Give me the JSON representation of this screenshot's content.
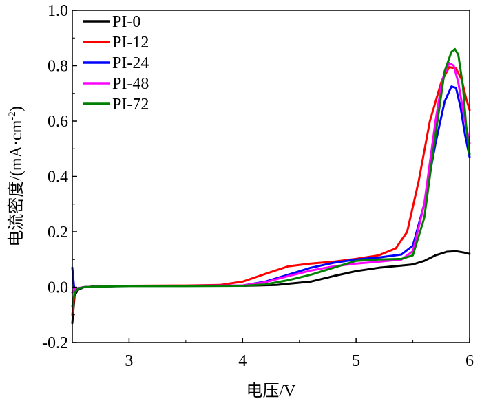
{
  "chart_data": {
    "type": "line",
    "title": "",
    "xlabel": "电压/V",
    "ylabel_main": "电流密度/(mA·cm",
    "ylabel_sup": "-2",
    "ylabel_close": ")",
    "xlim": [
      2.5,
      6
    ],
    "ylim": [
      -0.2,
      1.0
    ],
    "xticks": [
      {
        "value": 3,
        "label": "3"
      },
      {
        "value": 4,
        "label": "4"
      },
      {
        "value": 5,
        "label": "5"
      },
      {
        "value": 6,
        "label": "6"
      }
    ],
    "yticks": [
      {
        "value": -0.2,
        "label": "-0.2"
      },
      {
        "value": 0.0,
        "label": "0.0"
      },
      {
        "value": 0.2,
        "label": "0.2"
      },
      {
        "value": 0.4,
        "label": "0.4"
      },
      {
        "value": 0.6,
        "label": "0.6"
      },
      {
        "value": 0.8,
        "label": "0.8"
      },
      {
        "value": 1.0,
        "label": "1.0"
      }
    ],
    "grid": false,
    "legend_position": "top-left",
    "series": [
      {
        "name": "PI-0",
        "color": "#000000",
        "x": [
          2.5,
          2.52,
          2.55,
          2.6,
          2.7,
          3.0,
          3.5,
          4.0,
          4.3,
          4.6,
          4.8,
          5.0,
          5.2,
          5.4,
          5.5,
          5.6,
          5.7,
          5.8,
          5.88,
          5.95,
          6.0
        ],
        "y": [
          -0.13,
          -0.03,
          -0.01,
          0.0,
          0.003,
          0.005,
          0.005,
          0.005,
          0.008,
          0.02,
          0.04,
          0.058,
          0.07,
          0.078,
          0.082,
          0.095,
          0.115,
          0.128,
          0.13,
          0.125,
          0.12
        ]
      },
      {
        "name": "PI-12",
        "color": "#ff0000",
        "x": [
          2.5,
          2.52,
          2.55,
          2.6,
          2.7,
          3.0,
          3.5,
          3.8,
          4.0,
          4.2,
          4.4,
          4.6,
          4.8,
          5.0,
          5.2,
          5.35,
          5.45,
          5.55,
          5.65,
          5.75,
          5.82,
          5.88,
          5.93,
          5.97,
          6.0
        ],
        "y": [
          -0.1,
          -0.02,
          -0.005,
          0.0,
          0.002,
          0.005,
          0.006,
          0.008,
          0.02,
          0.048,
          0.075,
          0.085,
          0.092,
          0.102,
          0.115,
          0.14,
          0.2,
          0.38,
          0.6,
          0.74,
          0.795,
          0.79,
          0.75,
          0.68,
          0.64
        ]
      },
      {
        "name": "PI-24",
        "color": "#0000ff",
        "x": [
          2.5,
          2.52,
          2.55,
          2.6,
          2.7,
          3.0,
          3.5,
          4.0,
          4.2,
          4.4,
          4.6,
          4.8,
          5.0,
          5.2,
          5.4,
          5.5,
          5.6,
          5.7,
          5.78,
          5.84,
          5.88,
          5.92,
          5.96,
          6.0
        ],
        "y": [
          0.07,
          -0.02,
          -0.005,
          0.0,
          0.002,
          0.005,
          0.005,
          0.006,
          0.02,
          0.045,
          0.07,
          0.088,
          0.1,
          0.107,
          0.118,
          0.15,
          0.3,
          0.52,
          0.67,
          0.725,
          0.72,
          0.65,
          0.55,
          0.47
        ]
      },
      {
        "name": "PI-48",
        "color": "#ff00ff",
        "x": [
          2.5,
          2.52,
          2.55,
          2.6,
          2.7,
          3.0,
          3.5,
          4.0,
          4.2,
          4.4,
          4.6,
          4.8,
          5.0,
          5.2,
          5.4,
          5.5,
          5.6,
          5.7,
          5.76,
          5.82,
          5.86,
          5.9,
          5.95,
          6.0
        ],
        "y": [
          -0.02,
          -0.008,
          -0.003,
          0.0,
          0.002,
          0.005,
          0.005,
          0.006,
          0.018,
          0.04,
          0.06,
          0.075,
          0.085,
          0.092,
          0.1,
          0.13,
          0.3,
          0.6,
          0.75,
          0.81,
          0.8,
          0.74,
          0.62,
          0.52
        ]
      },
      {
        "name": "PI-72",
        "color": "#008000",
        "x": [
          2.5,
          2.52,
          2.55,
          2.6,
          2.7,
          3.0,
          3.5,
          4.0,
          4.2,
          4.4,
          4.6,
          4.8,
          5.0,
          5.2,
          5.4,
          5.5,
          5.6,
          5.7,
          5.78,
          5.84,
          5.87,
          5.9,
          5.94,
          5.97,
          6.0
        ],
        "y": [
          -0.07,
          -0.02,
          -0.005,
          0.0,
          0.002,
          0.004,
          0.004,
          0.005,
          0.01,
          0.025,
          0.045,
          0.07,
          0.095,
          0.1,
          0.102,
          0.115,
          0.25,
          0.55,
          0.78,
          0.85,
          0.86,
          0.84,
          0.73,
          0.58,
          0.48
        ]
      }
    ]
  }
}
